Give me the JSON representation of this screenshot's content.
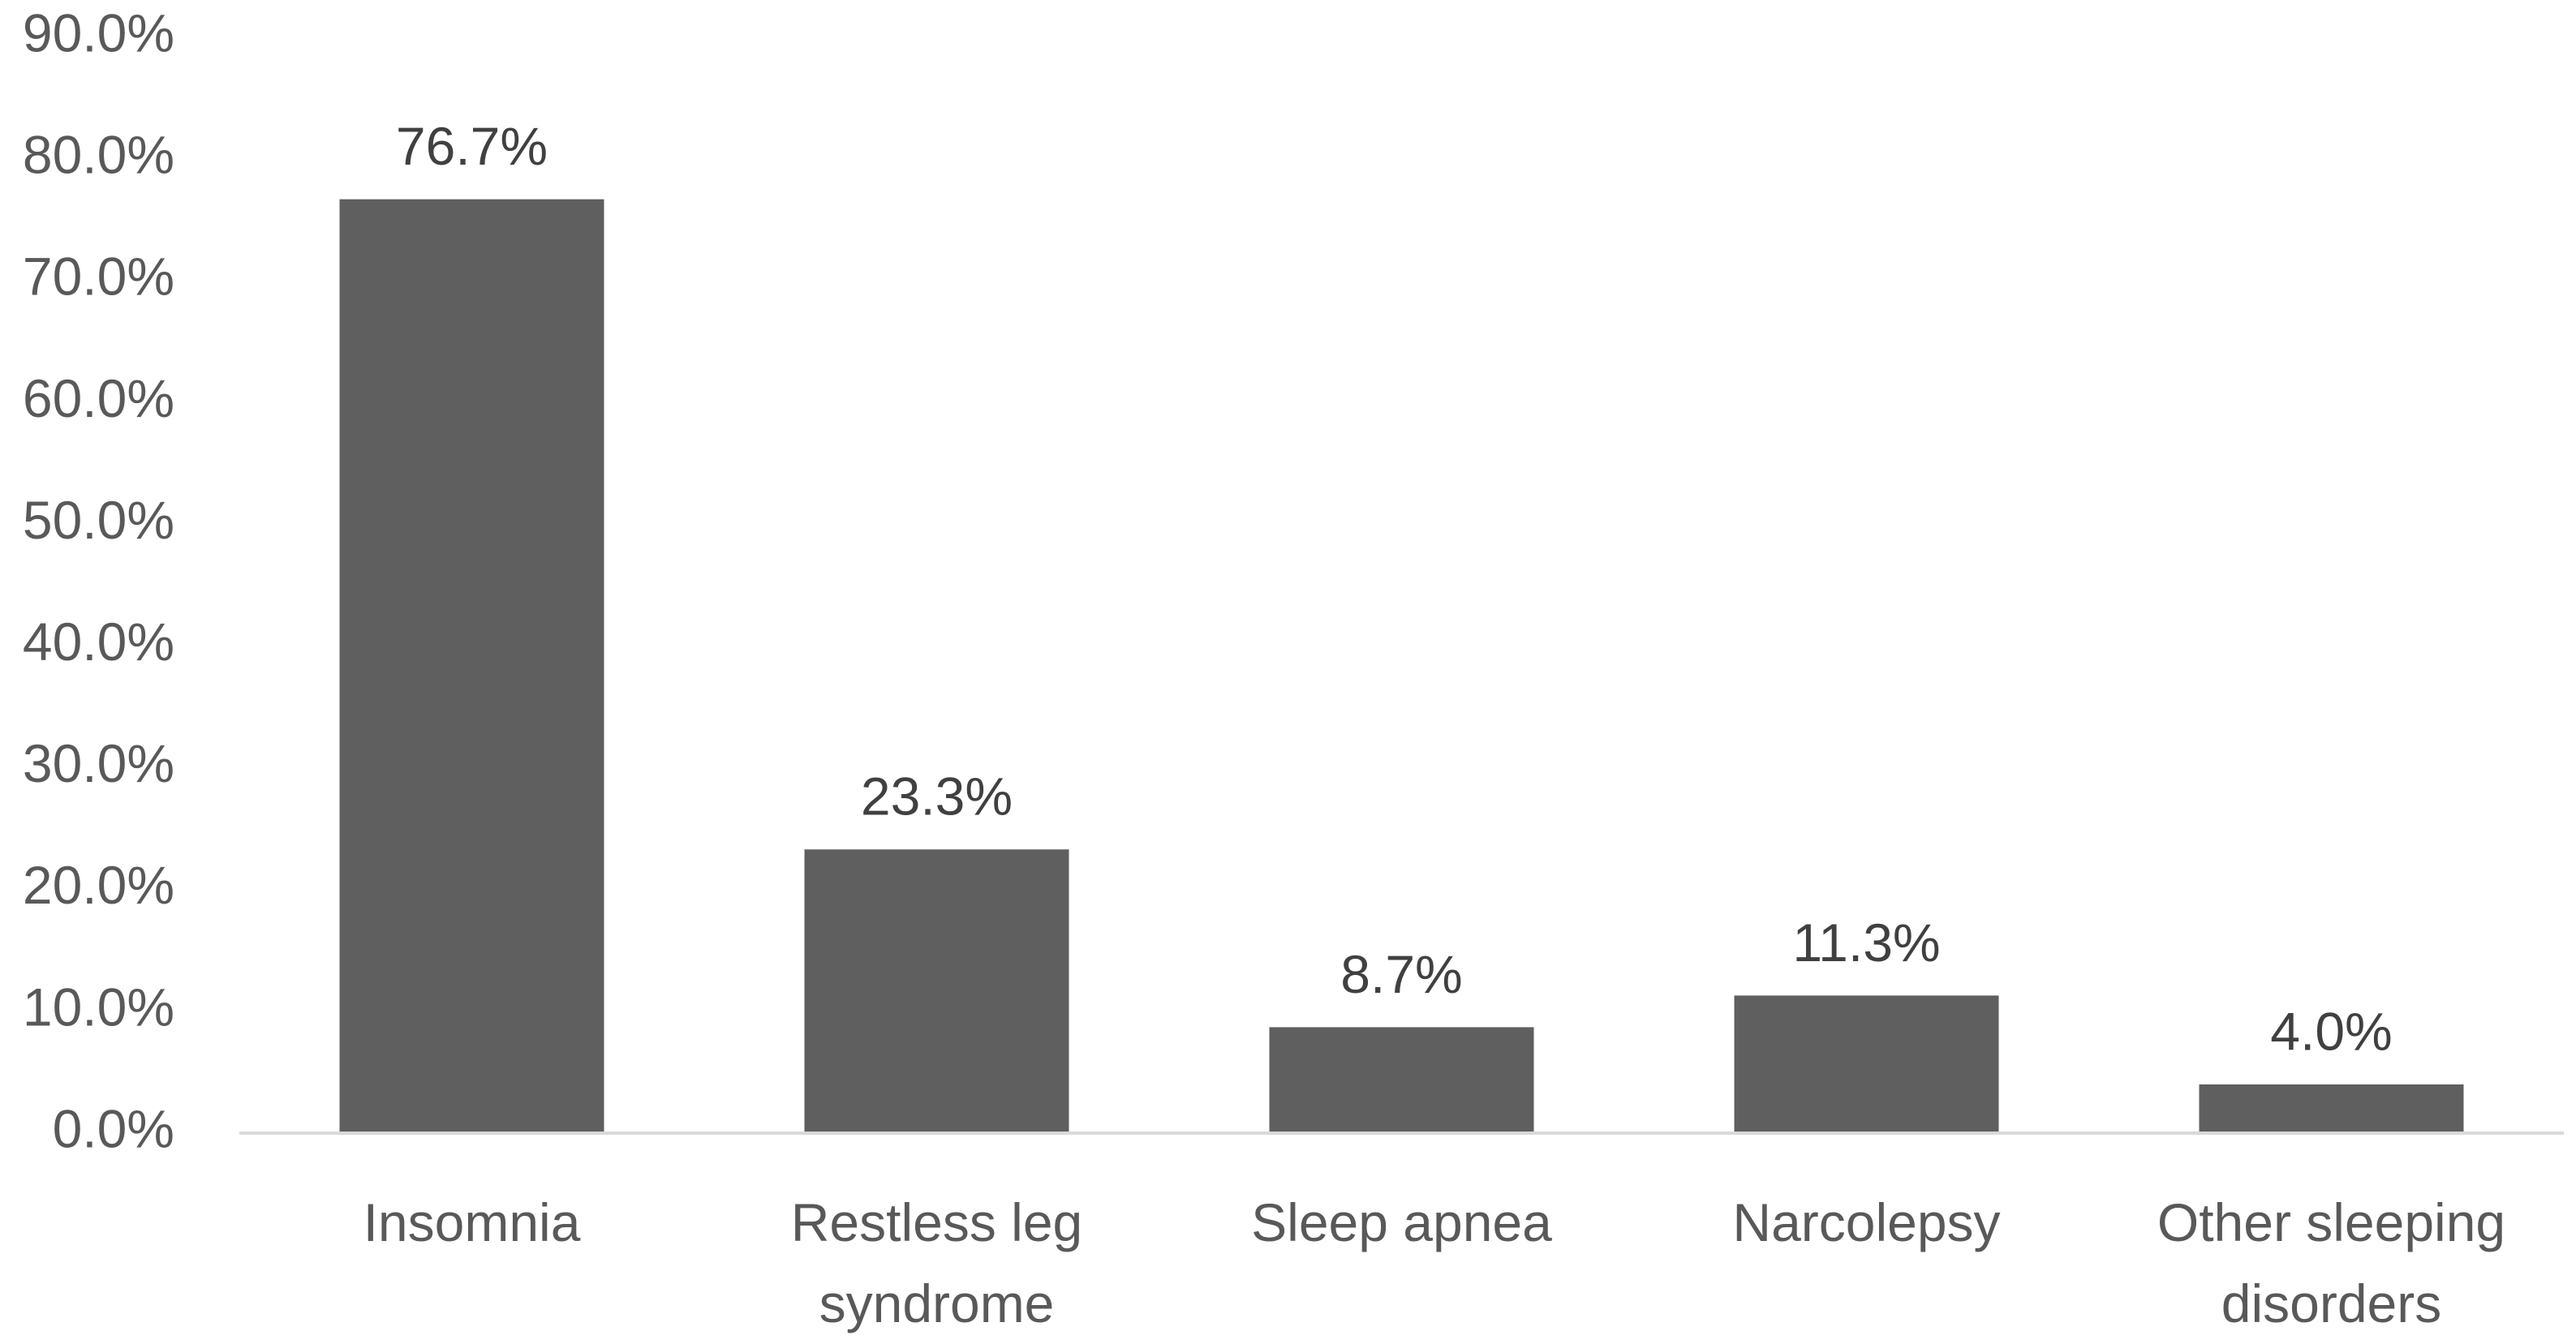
{
  "chart_data": {
    "type": "bar",
    "categories": [
      [
        "Insomnia"
      ],
      [
        "Restless leg",
        "syndrome"
      ],
      [
        "Sleep apnea"
      ],
      [
        "Narcolepsy"
      ],
      [
        "Other sleeping",
        "disorders"
      ]
    ],
    "values": [
      76.7,
      23.3,
      8.7,
      11.3,
      4.0
    ],
    "data_labels": [
      "76.7%",
      "23.3%",
      "8.7%",
      "11.3%",
      "4.0%"
    ],
    "y_ticks": [
      "0.0%",
      "10.0%",
      "20.0%",
      "30.0%",
      "40.0%",
      "50.0%",
      "60.0%",
      "70.0%",
      "80.0%",
      "90.0%"
    ],
    "ylim": [
      0,
      90
    ],
    "title": "",
    "xlabel": "",
    "ylabel": "",
    "grid": false,
    "legend": "none",
    "colors": {
      "bar": "#5f5f5f",
      "axis": "#d9d9d9",
      "tick_text": "#595959",
      "data_label_text": "#404040"
    }
  }
}
